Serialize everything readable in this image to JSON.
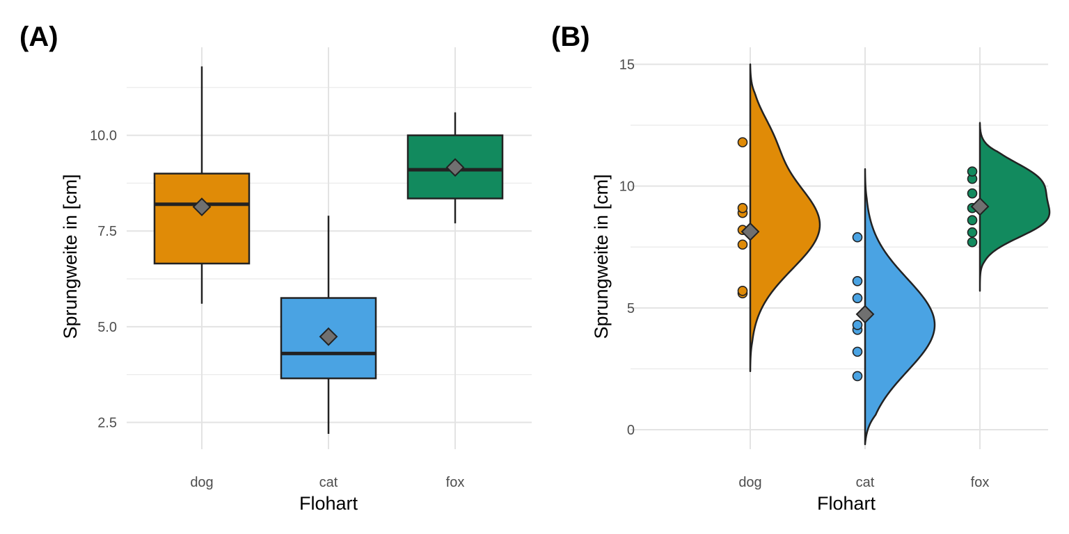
{
  "panels": {
    "a": {
      "label": "(A)"
    },
    "b": {
      "label": "(B)"
    }
  },
  "colors": {
    "dog": "#E08B07",
    "cat": "#4AA3E3",
    "fox": "#128A5E",
    "mean_marker": "#707070",
    "outline": "#222222"
  },
  "chart_data": [
    {
      "type": "box",
      "panel": "(A)",
      "categories": [
        "dog",
        "cat",
        "fox"
      ],
      "xlabel": "Flohart",
      "ylabel": "Sprungweite in [cm]",
      "ylim": [
        1.8,
        12.3
      ],
      "yticks": [
        2.5,
        5.0,
        7.5,
        10.0
      ],
      "ytick_labels": [
        "2.5",
        "5.0",
        "7.5",
        "10.0"
      ],
      "grid": true,
      "boxes": [
        {
          "category": "dog",
          "whisker_low": 5.6,
          "q1": 6.65,
          "median": 8.2,
          "q3": 9.0,
          "whisker_high": 11.8,
          "mean": 8.13
        },
        {
          "category": "cat",
          "whisker_low": 2.2,
          "q1": 3.65,
          "median": 4.3,
          "q3": 5.75,
          "whisker_high": 7.9,
          "mean": 4.74
        },
        {
          "category": "fox",
          "whisker_low": 7.7,
          "q1": 8.35,
          "median": 9.1,
          "q3": 10.0,
          "whisker_high": 10.6,
          "mean": 9.16
        }
      ]
    },
    {
      "type": "scatter",
      "subtype": "raincloud",
      "panel": "(B)",
      "categories": [
        "dog",
        "cat",
        "fox"
      ],
      "xlabel": "Flohart",
      "ylabel": "Sprungweite in [cm]",
      "ylim": [
        -0.8,
        15.7
      ],
      "yticks": [
        0,
        5,
        10,
        15
      ],
      "ytick_labels": [
        "0",
        "5",
        "10",
        "15"
      ],
      "grid": true,
      "groups": [
        {
          "category": "dog",
          "points": [
            5.6,
            5.7,
            7.6,
            8.2,
            8.9,
            9.1,
            11.8
          ],
          "mean": 8.13,
          "density_range": [
            2.4,
            15.0
          ],
          "density_modes": [
            {
              "at": 8.4,
              "width": 1.8,
              "weight": 1.0
            },
            {
              "at": 12.0,
              "width": 1.1,
              "weight": 0.22
            }
          ],
          "density_peak": 8.2
        },
        {
          "category": "cat",
          "points": [
            2.2,
            3.2,
            4.1,
            4.3,
            5.4,
            6.1,
            7.9
          ],
          "mean": 4.74,
          "density_range": [
            -0.6,
            10.7
          ],
          "density_modes": [
            {
              "at": 4.3,
              "width": 1.9,
              "weight": 1.0
            }
          ],
          "density_peak": 4.3
        },
        {
          "category": "fox",
          "points": [
            7.7,
            8.1,
            8.6,
            9.1,
            9.7,
            10.3,
            10.6
          ],
          "mean": 9.16,
          "density_range": [
            5.7,
            12.6
          ],
          "density_modes": [
            {
              "at": 8.6,
              "width": 0.75,
              "weight": 1.0
            },
            {
              "at": 10.2,
              "width": 0.8,
              "weight": 0.95
            }
          ],
          "density_peak": 8.6
        }
      ]
    }
  ]
}
